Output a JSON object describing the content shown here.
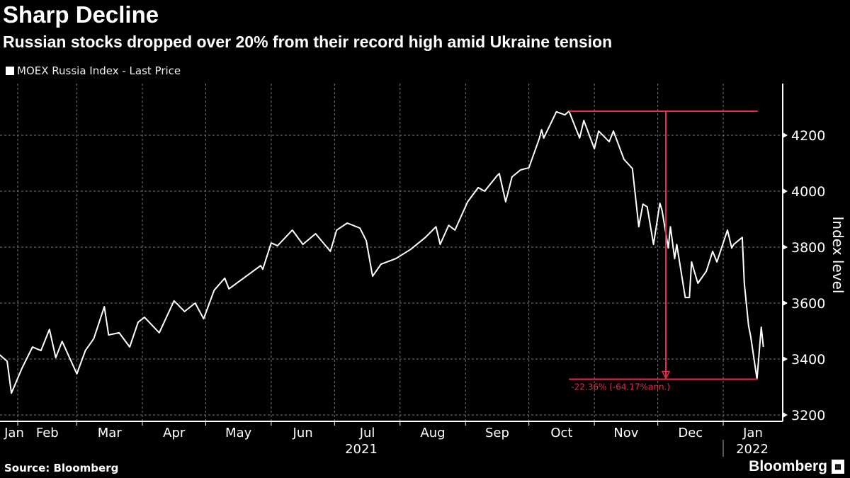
{
  "header": {
    "title": "Sharp Decline",
    "subtitle": "Russian stocks dropped over 20% from their record high amid Ukraine tension"
  },
  "footer": {
    "source": "Source: Bloomberg",
    "logo": "Bloomberg"
  },
  "colors": {
    "background": "#000000",
    "line": "#ffffff",
    "annotation": "#e8294a",
    "grid": "#666666"
  },
  "chart_data": {
    "type": "line",
    "title": "Sharp Decline",
    "subtitle": "Russian stocks dropped over 20% from their record high amid Ukraine tension",
    "ylabel": "Index level",
    "ylim": [
      3150,
      4350
    ],
    "yticks": [
      3200,
      3400,
      3600,
      3800,
      4000,
      4200
    ],
    "y_axis_side": "right",
    "grid": true,
    "legend_placement": "top-left",
    "xtick_labels": [
      "Jan",
      "Feb",
      "Mar",
      "Apr",
      "May",
      "Jun",
      "Jul",
      "Aug",
      "Sep",
      "Oct",
      "Nov",
      "Dec",
      "Jan"
    ],
    "year_labels": [
      "2021",
      "2022"
    ],
    "series": [
      {
        "name": "MOEX Russia Index - Last Price",
        "points": [
          [
            "2021-01-23",
            3418
          ],
          [
            "2021-01-27",
            3392
          ],
          [
            "2021-01-29",
            3278
          ],
          [
            "2021-02-03",
            3367
          ],
          [
            "2021-02-08",
            3443
          ],
          [
            "2021-02-12",
            3430
          ],
          [
            "2021-02-16",
            3506
          ],
          [
            "2021-02-19",
            3405
          ],
          [
            "2021-02-22",
            3463
          ],
          [
            "2021-03-01",
            3347
          ],
          [
            "2021-03-05",
            3430
          ],
          [
            "2021-03-09",
            3473
          ],
          [
            "2021-03-14",
            3587
          ],
          [
            "2021-03-16",
            3486
          ],
          [
            "2021-03-21",
            3494
          ],
          [
            "2021-03-26",
            3443
          ],
          [
            "2021-03-30",
            3532
          ],
          [
            "2021-04-02",
            3549
          ],
          [
            "2021-04-09",
            3494
          ],
          [
            "2021-04-16",
            3608
          ],
          [
            "2021-04-21",
            3570
          ],
          [
            "2021-04-26",
            3600
          ],
          [
            "2021-04-30",
            3544
          ],
          [
            "2021-05-05",
            3646
          ],
          [
            "2021-05-10",
            3689
          ],
          [
            "2021-05-12",
            3651
          ],
          [
            "2021-05-18",
            3684
          ],
          [
            "2021-05-27",
            3734
          ],
          [
            "2021-05-28",
            3721
          ],
          [
            "2021-06-01",
            3815
          ],
          [
            "2021-06-04",
            3805
          ],
          [
            "2021-06-11",
            3861
          ],
          [
            "2021-06-16",
            3810
          ],
          [
            "2021-06-22",
            3848
          ],
          [
            "2021-06-29",
            3785
          ],
          [
            "2021-07-02",
            3861
          ],
          [
            "2021-07-07",
            3886
          ],
          [
            "2021-07-13",
            3868
          ],
          [
            "2021-07-16",
            3823
          ],
          [
            "2021-07-19",
            3696
          ],
          [
            "2021-07-23",
            3739
          ],
          [
            "2021-07-30",
            3759
          ],
          [
            "2021-08-06",
            3792
          ],
          [
            "2021-08-13",
            3835
          ],
          [
            "2021-08-18",
            3873
          ],
          [
            "2021-08-20",
            3810
          ],
          [
            "2021-08-24",
            3878
          ],
          [
            "2021-08-27",
            3861
          ],
          [
            "2021-09-02",
            3962
          ],
          [
            "2021-09-07",
            4013
          ],
          [
            "2021-09-10",
            4000
          ],
          [
            "2021-09-16",
            4056
          ],
          [
            "2021-09-17",
            4063
          ],
          [
            "2021-09-20",
            3962
          ],
          [
            "2021-09-23",
            4051
          ],
          [
            "2021-09-27",
            4076
          ],
          [
            "2021-10-01",
            4084
          ],
          [
            "2021-10-06",
            4190
          ],
          [
            "2021-10-07",
            4220
          ],
          [
            "2021-10-08",
            4190
          ],
          [
            "2021-10-14",
            4284
          ],
          [
            "2021-10-18",
            4273
          ],
          [
            "2021-10-20",
            4286
          ],
          [
            "2021-10-25",
            4190
          ],
          [
            "2021-10-27",
            4253
          ],
          [
            "2021-11-01",
            4152
          ],
          [
            "2021-11-03",
            4215
          ],
          [
            "2021-11-08",
            4177
          ],
          [
            "2021-11-10",
            4215
          ],
          [
            "2021-11-15",
            4114
          ],
          [
            "2021-11-19",
            4081
          ],
          [
            "2021-11-22",
            3873
          ],
          [
            "2021-11-24",
            3954
          ],
          [
            "2021-11-26",
            3944
          ],
          [
            "2021-11-29",
            3810
          ],
          [
            "2021-12-02",
            3957
          ],
          [
            "2021-12-03",
            3932
          ],
          [
            "2021-12-06",
            3797
          ],
          [
            "2021-12-07",
            3873
          ],
          [
            "2021-12-09",
            3759
          ],
          [
            "2021-12-10",
            3810
          ],
          [
            "2021-12-14",
            3620
          ],
          [
            "2021-12-16",
            3620
          ],
          [
            "2021-12-17",
            3747
          ],
          [
            "2021-12-20",
            3671
          ],
          [
            "2021-12-24",
            3714
          ],
          [
            "2021-12-27",
            3785
          ],
          [
            "2021-12-29",
            3747
          ],
          [
            "2022-01-03",
            3861
          ],
          [
            "2022-01-05",
            3797
          ],
          [
            "2022-01-06",
            3810
          ],
          [
            "2022-01-10",
            3835
          ],
          [
            "2022-01-11",
            3671
          ],
          [
            "2022-01-13",
            3519
          ],
          [
            "2022-01-14",
            3481
          ],
          [
            "2022-01-17",
            3328
          ],
          [
            "2022-01-19",
            3514
          ],
          [
            "2022-01-20",
            3443
          ]
        ]
      }
    ],
    "annotation": {
      "label": "-22.36% (-64.17%ann.)",
      "high": 4286,
      "high_date": "2021-10-20",
      "low": 3328,
      "low_date": "2022-01-17",
      "color": "#e8294a"
    }
  }
}
